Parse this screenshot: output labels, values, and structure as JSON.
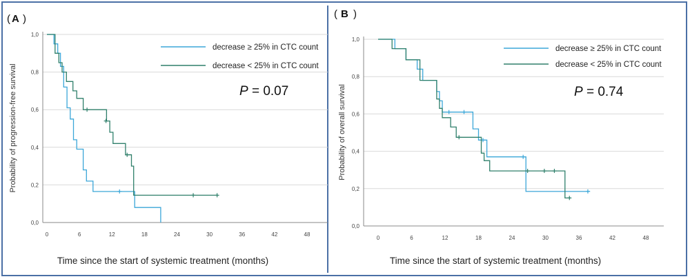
{
  "colors": {
    "decrease_ge": "#3aa6d8",
    "decrease_lt": "#2e7f6a",
    "grid": "#d9d9d9",
    "frame": "#4a6fa5"
  },
  "chart_data": [
    {
      "type": "line",
      "panel": "A",
      "ylabel": "Probability of progression-free survival",
      "xlabel": "Time since the start of systemic treatment (months)",
      "annotation": {
        "p_label": "P",
        "p_value": "= 0.07"
      },
      "xlim": [
        0,
        48
      ],
      "ylim": [
        0,
        1
      ],
      "x_ticks": [
        "0",
        "6",
        "12",
        "18",
        "24",
        "30",
        "36",
        "42",
        "48"
      ],
      "y_ticks": [
        "0,0",
        "0,2",
        "0,4",
        "0,6",
        "0,8",
        "1,0"
      ],
      "grid": "horizontal",
      "legend": "top-right",
      "series": [
        {
          "name": "decrease ≥ 25% in CTC count",
          "color_key": "decrease_ge",
          "points": [
            [
              0,
              1.0
            ],
            [
              1.3,
              1.0
            ],
            [
              1.3,
              0.95
            ],
            [
              2.0,
              0.95
            ],
            [
              2.0,
              0.9
            ],
            [
              2.5,
              0.9
            ],
            [
              2.5,
              0.83
            ],
            [
              3.1,
              0.83
            ],
            [
              3.1,
              0.72
            ],
            [
              3.7,
              0.72
            ],
            [
              3.7,
              0.61
            ],
            [
              4.3,
              0.61
            ],
            [
              4.3,
              0.55
            ],
            [
              4.9,
              0.55
            ],
            [
              4.9,
              0.44
            ],
            [
              5.5,
              0.44
            ],
            [
              5.5,
              0.39
            ],
            [
              6.7,
              0.39
            ],
            [
              6.7,
              0.28
            ],
            [
              7.3,
              0.28
            ],
            [
              7.3,
              0.22
            ],
            [
              8.5,
              0.22
            ],
            [
              8.5,
              0.165
            ],
            [
              16.2,
              0.165
            ],
            [
              16.2,
              0.08
            ],
            [
              21.0,
              0.08
            ],
            [
              21.0,
              0.0
            ]
          ],
          "censor": [
            [
              13.4,
              0.165
            ]
          ]
        },
        {
          "name": "decrease < 25% in CTC count",
          "color_key": "decrease_lt",
          "points": [
            [
              0,
              1.0
            ],
            [
              1.5,
              1.0
            ],
            [
              1.5,
              0.9
            ],
            [
              2.2,
              0.9
            ],
            [
              2.2,
              0.85
            ],
            [
              2.8,
              0.85
            ],
            [
              2.8,
              0.8
            ],
            [
              3.6,
              0.8
            ],
            [
              3.6,
              0.75
            ],
            [
              4.8,
              0.75
            ],
            [
              4.8,
              0.7
            ],
            [
              5.5,
              0.7
            ],
            [
              5.5,
              0.66
            ],
            [
              6.7,
              0.66
            ],
            [
              6.7,
              0.6
            ],
            [
              11.0,
              0.6
            ],
            [
              11.0,
              0.54
            ],
            [
              11.6,
              0.54
            ],
            [
              11.6,
              0.48
            ],
            [
              12.2,
              0.48
            ],
            [
              12.2,
              0.42
            ],
            [
              14.5,
              0.42
            ],
            [
              14.5,
              0.36
            ],
            [
              15.6,
              0.36
            ],
            [
              15.6,
              0.3
            ],
            [
              16.0,
              0.3
            ],
            [
              16.0,
              0.145
            ],
            [
              31.5,
              0.145
            ]
          ],
          "censor": [
            [
              7.4,
              0.6
            ],
            [
              10.9,
              0.54
            ],
            [
              14.8,
              0.36
            ],
            [
              27.0,
              0.145
            ],
            [
              31.4,
              0.145
            ]
          ]
        }
      ]
    },
    {
      "type": "line",
      "panel": "B",
      "ylabel": "Probability of overall survival",
      "xlabel": "Time since the start of systemic treatment (months)",
      "annotation": {
        "p_label": "P",
        "p_value": "= 0.74"
      },
      "xlim": [
        0,
        48
      ],
      "ylim": [
        0,
        1
      ],
      "x_ticks": [
        "0",
        "6",
        "12",
        "18",
        "24",
        "30",
        "36",
        "42",
        "48"
      ],
      "y_ticks": [
        "0,0",
        "0,2",
        "0,4",
        "0,6",
        "0,8",
        "1,0"
      ],
      "grid": "horizontal",
      "legend": "top-right",
      "series": [
        {
          "name": "decrease ≥ 25% in CTC count",
          "color_key": "decrease_ge",
          "points": [
            [
              0,
              1.0
            ],
            [
              3.0,
              1.0
            ],
            [
              3.0,
              0.95
            ],
            [
              5.0,
              0.95
            ],
            [
              5.0,
              0.89
            ],
            [
              7.0,
              0.89
            ],
            [
              7.0,
              0.84
            ],
            [
              8.0,
              0.84
            ],
            [
              8.0,
              0.78
            ],
            [
              10.5,
              0.78
            ],
            [
              10.5,
              0.72
            ],
            [
              11.0,
              0.72
            ],
            [
              11.0,
              0.67
            ],
            [
              11.5,
              0.67
            ],
            [
              11.5,
              0.61
            ],
            [
              17.0,
              0.61
            ],
            [
              17.0,
              0.52
            ],
            [
              18.0,
              0.52
            ],
            [
              18.0,
              0.46
            ],
            [
              19.5,
              0.46
            ],
            [
              19.5,
              0.37
            ],
            [
              26.5,
              0.37
            ],
            [
              26.5,
              0.185
            ],
            [
              38.0,
              0.185
            ]
          ],
          "censor": [
            [
              12.7,
              0.61
            ],
            [
              15.4,
              0.61
            ],
            [
              18.8,
              0.46
            ],
            [
              26.0,
              0.37
            ],
            [
              37.6,
              0.185
            ]
          ]
        },
        {
          "name": "decrease < 25% in CTC count",
          "color_key": "decrease_lt",
          "points": [
            [
              0,
              1.0
            ],
            [
              2.5,
              1.0
            ],
            [
              2.5,
              0.95
            ],
            [
              5.0,
              0.95
            ],
            [
              5.0,
              0.89
            ],
            [
              7.5,
              0.89
            ],
            [
              7.5,
              0.78
            ],
            [
              10.5,
              0.78
            ],
            [
              10.5,
              0.68
            ],
            [
              11.0,
              0.68
            ],
            [
              11.0,
              0.63
            ],
            [
              11.5,
              0.63
            ],
            [
              11.5,
              0.58
            ],
            [
              13.0,
              0.58
            ],
            [
              13.0,
              0.53
            ],
            [
              14.0,
              0.53
            ],
            [
              14.0,
              0.475
            ],
            [
              18.5,
              0.475
            ],
            [
              18.5,
              0.39
            ],
            [
              19.0,
              0.39
            ],
            [
              19.0,
              0.35
            ],
            [
              20.0,
              0.35
            ],
            [
              20.0,
              0.295
            ],
            [
              33.5,
              0.295
            ],
            [
              33.5,
              0.15
            ],
            [
              34.5,
              0.15
            ]
          ],
          "censor": [
            [
              14.5,
              0.475
            ],
            [
              26.8,
              0.295
            ],
            [
              29.8,
              0.295
            ],
            [
              31.6,
              0.295
            ],
            [
              34.3,
              0.15
            ]
          ]
        }
      ]
    }
  ]
}
